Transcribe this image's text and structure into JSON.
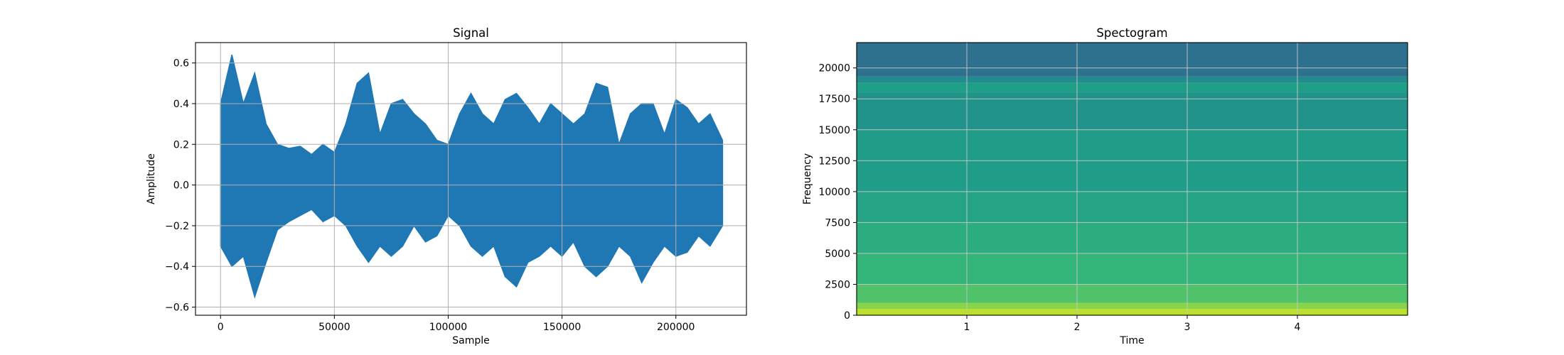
{
  "chart_data": [
    {
      "type": "line",
      "title": "Signal",
      "xlabel": "Sample",
      "ylabel": "Amplitude",
      "xlim": [
        -11000,
        231000
      ],
      "ylim": [
        -0.64,
        0.7
      ],
      "xticks": [
        0,
        50000,
        100000,
        150000,
        200000
      ],
      "xtick_labels": [
        "0",
        "50000",
        "100000",
        "150000",
        "200000"
      ],
      "yticks": [
        -0.6,
        -0.4,
        -0.2,
        0.0,
        0.2,
        0.4,
        0.6
      ],
      "ytick_labels": [
        "−0.6",
        "−0.4",
        "−0.2",
        "0.0",
        "0.2",
        "0.4",
        "0.6"
      ],
      "grid": true,
      "color": "#1f77b4",
      "series": [
        {
          "x": [
            0,
            5000,
            10000,
            15000,
            20000,
            25000,
            30000,
            35000,
            40000,
            45000,
            50000,
            55000,
            60000,
            65000,
            70000,
            75000,
            80000,
            85000,
            90000,
            95000,
            100000,
            105000,
            110000,
            115000,
            120000,
            125000,
            130000,
            135000,
            140000,
            145000,
            150000,
            155000,
            160000,
            165000,
            170000,
            175000,
            180000,
            185000,
            190000,
            195000,
            200000,
            205000,
            210000,
            215000,
            220500
          ],
          "upper": [
            0.4,
            0.64,
            0.4,
            0.55,
            0.3,
            0.2,
            0.18,
            0.19,
            0.15,
            0.2,
            0.16,
            0.3,
            0.5,
            0.55,
            0.25,
            0.4,
            0.42,
            0.35,
            0.3,
            0.22,
            0.2,
            0.35,
            0.45,
            0.35,
            0.3,
            0.42,
            0.45,
            0.38,
            0.3,
            0.4,
            0.35,
            0.3,
            0.35,
            0.5,
            0.48,
            0.2,
            0.35,
            0.4,
            0.4,
            0.25,
            0.42,
            0.38,
            0.3,
            0.35,
            0.22
          ],
          "lower": [
            -0.3,
            -0.4,
            -0.35,
            -0.55,
            -0.38,
            -0.22,
            -0.18,
            -0.15,
            -0.12,
            -0.18,
            -0.15,
            -0.2,
            -0.3,
            -0.38,
            -0.3,
            -0.35,
            -0.3,
            -0.2,
            -0.28,
            -0.25,
            -0.15,
            -0.2,
            -0.3,
            -0.35,
            -0.3,
            -0.45,
            -0.5,
            -0.38,
            -0.35,
            -0.3,
            -0.35,
            -0.28,
            -0.4,
            -0.45,
            -0.4,
            -0.3,
            -0.35,
            -0.48,
            -0.38,
            -0.3,
            -0.35,
            -0.33,
            -0.25,
            -0.3,
            -0.2
          ]
        }
      ]
    },
    {
      "type": "heatmap",
      "title": "Spectogram",
      "xlabel": "Time",
      "ylabel": "Frequency",
      "xlim": [
        0,
        5.0
      ],
      "ylim": [
        0,
        22050
      ],
      "xticks": [
        1,
        2,
        3,
        4
      ],
      "xtick_labels": [
        "1",
        "2",
        "3",
        "4"
      ],
      "yticks": [
        0,
        2500,
        5000,
        7500,
        10000,
        12500,
        15000,
        17500,
        20000
      ],
      "ytick_labels": [
        "0",
        "2500",
        "5000",
        "7500",
        "10000",
        "12500",
        "15000",
        "17500",
        "20000"
      ],
      "grid": true,
      "colormap": "viridis",
      "frequency_bands": [
        {
          "from": 0,
          "to": 500,
          "level": 0.9
        },
        {
          "from": 500,
          "to": 1000,
          "level": 0.82
        },
        {
          "from": 1000,
          "to": 2500,
          "level": 0.72
        },
        {
          "from": 2500,
          "to": 5000,
          "level": 0.66
        },
        {
          "from": 5000,
          "to": 7500,
          "level": 0.62
        },
        {
          "from": 7500,
          "to": 10000,
          "level": 0.58
        },
        {
          "from": 10000,
          "to": 15000,
          "level": 0.55
        },
        {
          "from": 15000,
          "to": 18000,
          "level": 0.51
        },
        {
          "from": 18000,
          "to": 18800,
          "level": 0.56
        },
        {
          "from": 18800,
          "to": 19300,
          "level": 0.48
        },
        {
          "from": 19300,
          "to": 22050,
          "level": 0.37
        }
      ]
    }
  ]
}
